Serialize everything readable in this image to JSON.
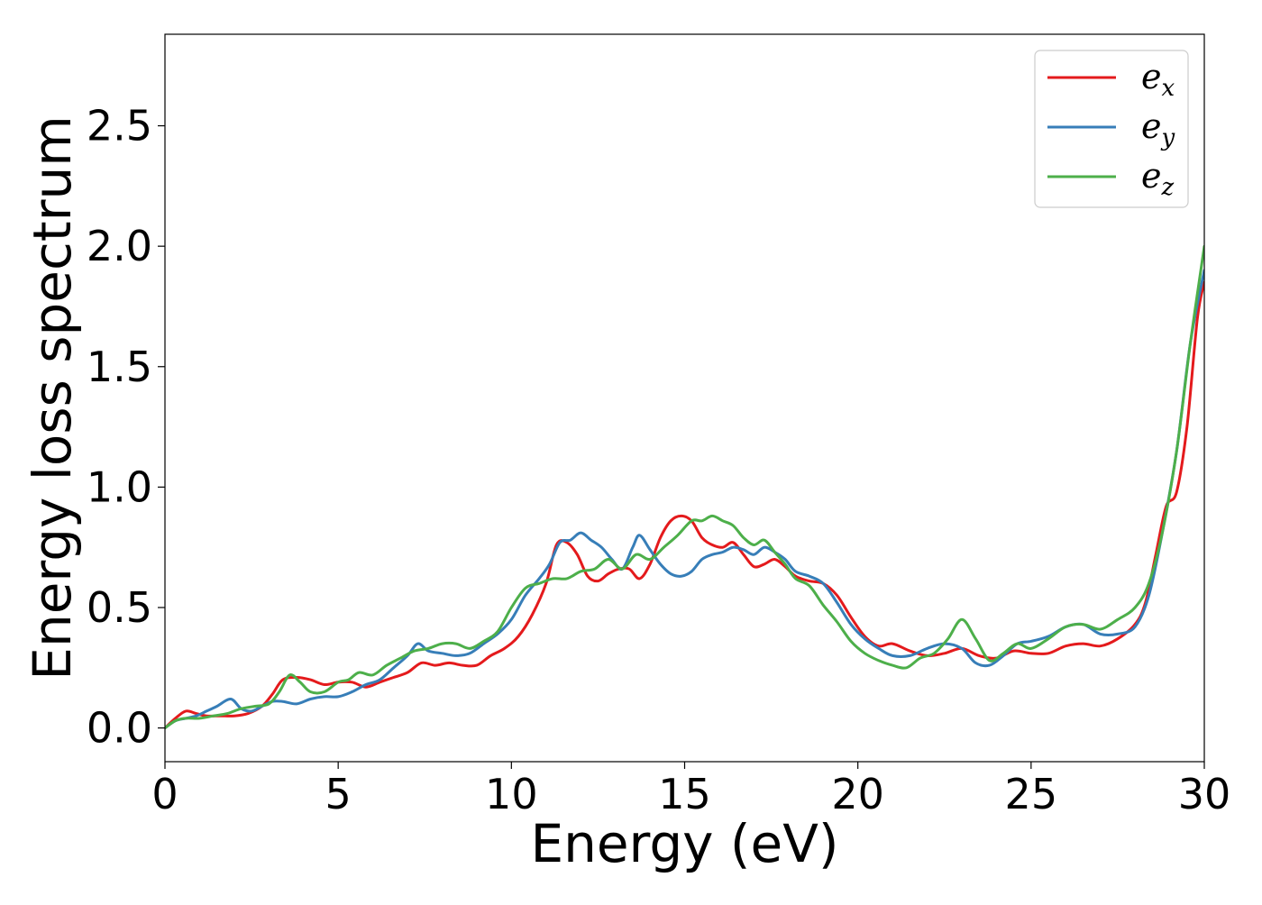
{
  "chart_data": {
    "type": "line",
    "title": "",
    "xlabel": "Energy (eV)",
    "ylabel": "Energy loss spectrum",
    "xlim": [
      0,
      30
    ],
    "ylim": [
      -0.14,
      2.88
    ],
    "xticks": [
      0,
      5,
      10,
      15,
      20,
      25,
      30
    ],
    "xtick_labels": [
      "0",
      "5",
      "10",
      "15",
      "20",
      "25",
      "30"
    ],
    "yticks": [
      0.0,
      0.5,
      1.0,
      1.5,
      2.0,
      2.5
    ],
    "ytick_labels": [
      "0.0",
      "0.5",
      "1.0",
      "1.5",
      "2.0",
      "2.5"
    ],
    "grid": false,
    "legend_position": "top-right",
    "series": [
      {
        "name": "e_x",
        "legend_base": "e",
        "legend_sub": "x",
        "color": "#e41a1c",
        "x": [
          0,
          0.3,
          0.6,
          0.9,
          1.2,
          1.6,
          2.0,
          2.4,
          2.8,
          3.1,
          3.4,
          3.8,
          4.2,
          4.6,
          5.0,
          5.4,
          5.8,
          6.2,
          6.6,
          7.0,
          7.4,
          7.8,
          8.2,
          8.6,
          9.0,
          9.4,
          9.8,
          10.2,
          10.6,
          11.0,
          11.3,
          11.6,
          11.9,
          12.2,
          12.5,
          12.8,
          13.1,
          13.4,
          13.7,
          14.0,
          14.3,
          14.6,
          14.9,
          15.2,
          15.5,
          15.8,
          16.1,
          16.4,
          16.7,
          17.0,
          17.3,
          17.6,
          17.9,
          18.2,
          18.6,
          19.0,
          19.4,
          19.8,
          20.2,
          20.6,
          21.0,
          21.5,
          22.0,
          22.5,
          23.0,
          23.5,
          24.0,
          24.5,
          25.0,
          25.5,
          26.0,
          26.5,
          27.0,
          27.5,
          28.0,
          28.3,
          28.6,
          28.9,
          29.2,
          29.5,
          29.8,
          30.0
        ],
        "y": [
          0.0,
          0.04,
          0.07,
          0.06,
          0.05,
          0.05,
          0.05,
          0.06,
          0.09,
          0.14,
          0.2,
          0.21,
          0.2,
          0.18,
          0.19,
          0.19,
          0.17,
          0.19,
          0.21,
          0.23,
          0.27,
          0.26,
          0.27,
          0.26,
          0.26,
          0.3,
          0.33,
          0.38,
          0.47,
          0.6,
          0.76,
          0.77,
          0.72,
          0.63,
          0.61,
          0.64,
          0.66,
          0.66,
          0.62,
          0.68,
          0.79,
          0.86,
          0.88,
          0.86,
          0.79,
          0.76,
          0.75,
          0.77,
          0.72,
          0.67,
          0.68,
          0.7,
          0.67,
          0.63,
          0.61,
          0.6,
          0.55,
          0.46,
          0.38,
          0.34,
          0.35,
          0.32,
          0.3,
          0.31,
          0.33,
          0.3,
          0.29,
          0.32,
          0.31,
          0.31,
          0.34,
          0.35,
          0.34,
          0.37,
          0.43,
          0.52,
          0.72,
          0.92,
          0.98,
          1.25,
          1.7,
          1.85
        ]
      },
      {
        "name": "e_y",
        "legend_base": "e",
        "legend_sub": "y",
        "color": "#377eb8",
        "x": [
          0,
          0.3,
          0.6,
          0.9,
          1.2,
          1.5,
          1.9,
          2.2,
          2.5,
          2.8,
          3.1,
          3.4,
          3.8,
          4.2,
          4.6,
          5.0,
          5.4,
          5.8,
          6.2,
          6.6,
          7.0,
          7.3,
          7.6,
          8.0,
          8.4,
          8.8,
          9.2,
          9.6,
          10.0,
          10.4,
          10.8,
          11.1,
          11.4,
          11.7,
          12.0,
          12.3,
          12.6,
          12.9,
          13.2,
          13.5,
          13.7,
          14.0,
          14.3,
          14.6,
          14.9,
          15.2,
          15.5,
          15.8,
          16.1,
          16.4,
          16.7,
          17.0,
          17.3,
          17.6,
          17.9,
          18.2,
          18.6,
          19.0,
          19.4,
          19.8,
          20.2,
          20.6,
          21.0,
          21.5,
          22.0,
          22.5,
          23.0,
          23.4,
          23.8,
          24.2,
          24.6,
          25.0,
          25.5,
          26.0,
          26.5,
          27.0,
          27.5,
          28.0,
          28.4,
          28.8,
          29.2,
          29.6,
          30.0
        ],
        "y": [
          0.0,
          0.03,
          0.04,
          0.05,
          0.07,
          0.09,
          0.12,
          0.08,
          0.07,
          0.09,
          0.11,
          0.11,
          0.1,
          0.12,
          0.13,
          0.13,
          0.15,
          0.18,
          0.2,
          0.25,
          0.3,
          0.35,
          0.32,
          0.31,
          0.3,
          0.31,
          0.35,
          0.39,
          0.45,
          0.55,
          0.62,
          0.68,
          0.77,
          0.78,
          0.81,
          0.78,
          0.75,
          0.7,
          0.66,
          0.75,
          0.8,
          0.74,
          0.68,
          0.64,
          0.63,
          0.65,
          0.7,
          0.72,
          0.73,
          0.75,
          0.74,
          0.72,
          0.75,
          0.73,
          0.7,
          0.65,
          0.63,
          0.6,
          0.52,
          0.43,
          0.37,
          0.33,
          0.3,
          0.3,
          0.33,
          0.35,
          0.33,
          0.27,
          0.26,
          0.3,
          0.35,
          0.36,
          0.38,
          0.42,
          0.43,
          0.39,
          0.39,
          0.42,
          0.55,
          0.82,
          1.15,
          1.6,
          1.9
        ]
      },
      {
        "name": "e_z",
        "legend_base": "e",
        "legend_sub": "z",
        "color": "#4daf4a",
        "x": [
          0,
          0.3,
          0.6,
          1.0,
          1.4,
          1.8,
          2.2,
          2.6,
          3.0,
          3.3,
          3.6,
          3.9,
          4.2,
          4.6,
          5.0,
          5.3,
          5.6,
          6.0,
          6.4,
          6.8,
          7.2,
          7.6,
          8.0,
          8.4,
          8.8,
          9.2,
          9.6,
          10.0,
          10.4,
          10.8,
          11.2,
          11.6,
          12.0,
          12.4,
          12.8,
          13.2,
          13.6,
          14.0,
          14.4,
          14.8,
          15.2,
          15.5,
          15.8,
          16.1,
          16.4,
          16.7,
          17.0,
          17.3,
          17.6,
          17.9,
          18.2,
          18.6,
          19.0,
          19.4,
          19.8,
          20.2,
          20.6,
          21.0,
          21.4,
          21.8,
          22.2,
          22.6,
          23.0,
          23.4,
          23.8,
          24.2,
          24.6,
          25.0,
          25.5,
          26.0,
          26.5,
          27.0,
          27.5,
          28.0,
          28.4,
          28.8,
          29.2,
          29.6,
          30.0
        ],
        "y": [
          0.0,
          0.03,
          0.04,
          0.04,
          0.05,
          0.06,
          0.08,
          0.09,
          0.1,
          0.15,
          0.22,
          0.19,
          0.15,
          0.15,
          0.19,
          0.2,
          0.23,
          0.22,
          0.26,
          0.29,
          0.32,
          0.33,
          0.35,
          0.35,
          0.33,
          0.36,
          0.4,
          0.5,
          0.58,
          0.6,
          0.62,
          0.62,
          0.65,
          0.66,
          0.7,
          0.66,
          0.72,
          0.7,
          0.75,
          0.8,
          0.86,
          0.86,
          0.88,
          0.86,
          0.84,
          0.79,
          0.76,
          0.78,
          0.73,
          0.68,
          0.62,
          0.59,
          0.51,
          0.44,
          0.36,
          0.31,
          0.28,
          0.26,
          0.25,
          0.29,
          0.31,
          0.37,
          0.45,
          0.37,
          0.28,
          0.31,
          0.35,
          0.33,
          0.37,
          0.42,
          0.43,
          0.41,
          0.45,
          0.5,
          0.6,
          0.82,
          1.15,
          1.6,
          2.0
        ]
      }
    ]
  }
}
